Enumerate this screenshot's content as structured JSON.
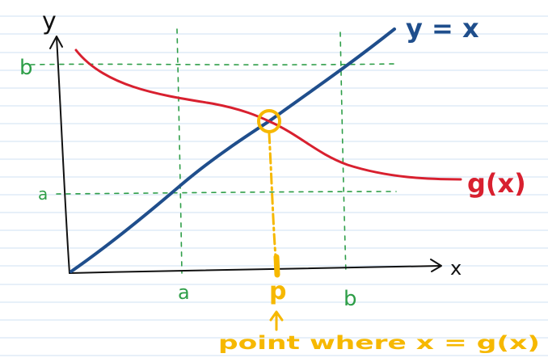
{
  "axes": {
    "y_label": "y",
    "x_label": "x"
  },
  "guides": {
    "a_y": "a",
    "b_y": "b",
    "a_x": "a",
    "b_x": "b"
  },
  "curves": {
    "line_label": "y = x",
    "curve_label": "g(x)"
  },
  "point": {
    "label": "p",
    "caption": "point where x = g(x)"
  },
  "colors": {
    "paper_line": "#cfe0f3",
    "axis": "#111111",
    "guide": "#2e9e48",
    "line": "#1f4e8c",
    "curve": "#d8202f",
    "highlight": "#f6b800"
  }
}
